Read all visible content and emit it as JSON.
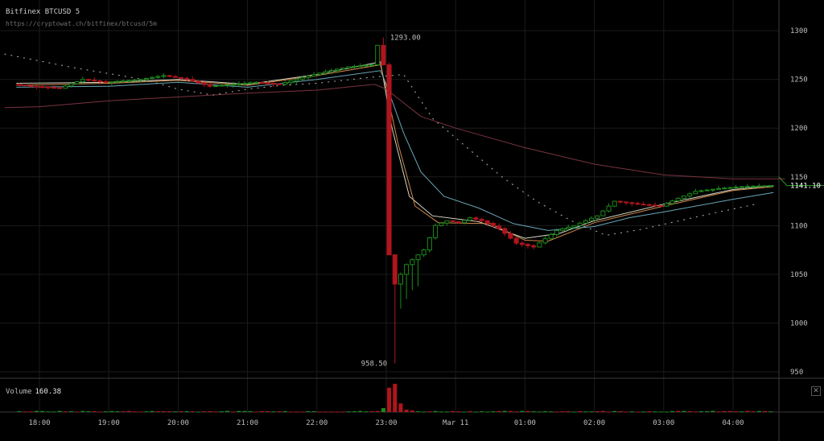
{
  "header": {
    "title": "Bitfinex BTCUSD 5",
    "url": "https://cryptowat.ch/bitfinex/btcusd/5m"
  },
  "volume_panel": {
    "label": "Volume",
    "value": "160.38",
    "close_icon": "close-icon"
  },
  "colors": {
    "background": "#000000",
    "grid": "#1b1b1b",
    "up": "#1c8a1c",
    "down": "#b0151d",
    "ema_fast": "#d7d7c8",
    "ema_mid": "#d08a4a",
    "ema_slow": "#6aa7b8",
    "ema_long": "#7a3340",
    "sar": "#9a9a9a",
    "last_price_line": "#2aa02a"
  },
  "chart_data": {
    "type": "candlestick",
    "symbol": "Bitfinex BTCUSD",
    "interval": "5",
    "ylim": [
      945,
      1315
    ],
    "y_ticks": [
      950,
      1000,
      1050,
      1100,
      1150,
      1200,
      1250,
      1300
    ],
    "x_ticks": [
      "18:00",
      "19:00",
      "20:00",
      "21:00",
      "22:00",
      "23:00",
      "Mar 11",
      "01:00",
      "02:00",
      "03:00",
      "04:00"
    ],
    "annotations": {
      "high": "1293.00",
      "low": "958.50",
      "last_price": "1141.10"
    },
    "price_path": [
      [
        "17:40",
        1245
      ],
      [
        "17:55",
        1243
      ],
      [
        "18:20",
        1241
      ],
      [
        "18:40",
        1250
      ],
      [
        "19:00",
        1247
      ],
      [
        "19:30",
        1250
      ],
      [
        "19:50",
        1254
      ],
      [
        "20:10",
        1250
      ],
      [
        "20:30",
        1243
      ],
      [
        "20:50",
        1245
      ],
      [
        "21:10",
        1247
      ],
      [
        "21:30",
        1245
      ],
      [
        "21:50",
        1252
      ],
      [
        "22:10",
        1258
      ],
      [
        "22:30",
        1263
      ],
      [
        "22:50",
        1265
      ],
      [
        "22:55",
        1285
      ],
      [
        "23:00",
        1265
      ],
      [
        "23:05",
        1070
      ],
      [
        "23:10",
        1040
      ],
      [
        "23:20",
        1060
      ],
      [
        "23:35",
        1075
      ],
      [
        "23:45",
        1100
      ],
      [
        "23:55",
        1105
      ],
      [
        "00:05",
        1103
      ],
      [
        "00:15",
        1108
      ],
      [
        "00:25",
        1105
      ],
      [
        "00:40",
        1097
      ],
      [
        "00:55",
        1082
      ],
      [
        "01:10",
        1078
      ],
      [
        "01:30",
        1095
      ],
      [
        "01:45",
        1100
      ],
      [
        "02:05",
        1110
      ],
      [
        "02:20",
        1125
      ],
      [
        "02:40",
        1122
      ],
      [
        "03:00",
        1120
      ],
      [
        "03:15",
        1128
      ],
      [
        "03:30",
        1135
      ],
      [
        "03:50",
        1138
      ],
      [
        "04:10",
        1140
      ],
      [
        "04:35",
        1141.1
      ]
    ],
    "indicators": [
      {
        "kind": "ema",
        "color": "ema_fast",
        "path": [
          [
            "17:40",
            1246
          ],
          [
            "19:00",
            1247
          ],
          [
            "20:00",
            1250
          ],
          [
            "21:00",
            1245
          ],
          [
            "22:00",
            1255
          ],
          [
            "22:55",
            1268
          ],
          [
            "23:05",
            1200
          ],
          [
            "23:20",
            1130
          ],
          [
            "23:40",
            1110
          ],
          [
            "00:20",
            1104
          ],
          [
            "01:00",
            1087
          ],
          [
            "01:30",
            1092
          ],
          [
            "02:00",
            1105
          ],
          [
            "03:00",
            1122
          ],
          [
            "04:00",
            1137
          ],
          [
            "04:35",
            1141
          ]
        ]
      },
      {
        "kind": "ema",
        "color": "ema_mid",
        "path": [
          [
            "17:40",
            1244
          ],
          [
            "19:00",
            1246
          ],
          [
            "20:00",
            1249
          ],
          [
            "21:00",
            1244
          ],
          [
            "22:00",
            1254
          ],
          [
            "22:55",
            1265
          ],
          [
            "23:00",
            1240
          ],
          [
            "23:10",
            1185
          ],
          [
            "23:25",
            1120
          ],
          [
            "23:45",
            1103
          ],
          [
            "00:30",
            1102
          ],
          [
            "01:00",
            1085
          ],
          [
            "01:20",
            1084
          ],
          [
            "02:00",
            1103
          ],
          [
            "03:00",
            1120
          ],
          [
            "04:00",
            1136
          ],
          [
            "04:35",
            1140
          ]
        ]
      },
      {
        "kind": "ema",
        "color": "ema_slow",
        "path": [
          [
            "17:40",
            1242
          ],
          [
            "19:00",
            1243
          ],
          [
            "20:00",
            1247
          ],
          [
            "21:00",
            1242
          ],
          [
            "22:00",
            1250
          ],
          [
            "22:55",
            1259
          ],
          [
            "23:00",
            1245
          ],
          [
            "23:15",
            1195
          ],
          [
            "23:30",
            1155
          ],
          [
            "23:50",
            1130
          ],
          [
            "00:20",
            1118
          ],
          [
            "00:50",
            1102
          ],
          [
            "01:20",
            1095
          ],
          [
            "02:00",
            1099
          ],
          [
            "02:30",
            1108
          ],
          [
            "03:00",
            1114
          ],
          [
            "04:00",
            1127
          ],
          [
            "04:35",
            1134
          ]
        ]
      },
      {
        "kind": "ema",
        "color": "ema_long",
        "path": [
          [
            "17:30",
            1221
          ],
          [
            "18:00",
            1222
          ],
          [
            "19:00",
            1228
          ],
          [
            "20:00",
            1232
          ],
          [
            "21:00",
            1236
          ],
          [
            "22:00",
            1239
          ],
          [
            "22:50",
            1245
          ],
          [
            "23:00",
            1240
          ],
          [
            "23:30",
            1212
          ],
          [
            "00:00",
            1200
          ],
          [
            "01:00",
            1180
          ],
          [
            "02:00",
            1163
          ],
          [
            "03:00",
            1152
          ],
          [
            "04:00",
            1148
          ],
          [
            "04:45",
            1148
          ]
        ]
      },
      {
        "kind": "sar",
        "color": "sar",
        "path": [
          [
            "17:30",
            1276
          ],
          [
            "18:30",
            1262
          ],
          [
            "19:30",
            1250
          ],
          [
            "20:00",
            1240
          ],
          [
            "20:30",
            1234
          ],
          [
            "21:00",
            1240
          ],
          [
            "21:30",
            1244
          ],
          [
            "22:00",
            1246
          ],
          [
            "22:45",
            1252
          ],
          [
            "23:15",
            1255
          ],
          [
            "23:40",
            1210
          ],
          [
            "00:10",
            1180
          ],
          [
            "00:40",
            1150
          ],
          [
            "01:10",
            1125
          ],
          [
            "01:40",
            1105
          ],
          [
            "02:10",
            1090
          ],
          [
            "02:40",
            1096
          ],
          [
            "03:10",
            1104
          ],
          [
            "03:40",
            1112
          ],
          [
            "04:20",
            1122
          ]
        ]
      }
    ],
    "volume": {
      "spikes": [
        [
          "22:55",
          10
        ],
        [
          "23:00",
          62
        ],
        [
          "23:05",
          72
        ],
        [
          "23:10",
          22
        ],
        [
          "23:15",
          6
        ],
        [
          "23:20",
          4
        ]
      ],
      "baseline": 2
    }
  }
}
